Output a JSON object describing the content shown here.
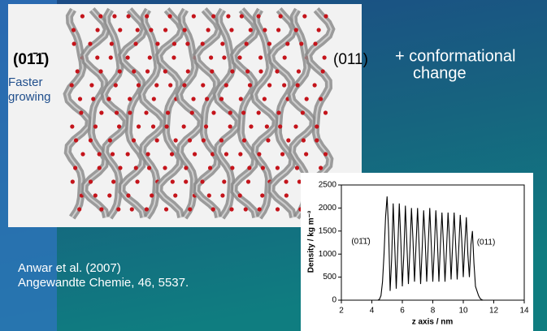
{
  "slide": {
    "label_left": "(01̄1̄)",
    "faster": [
      "Faster",
      "growing"
    ],
    "label_right": "(011)",
    "note": [
      "+ conformational",
      "change"
    ],
    "citation": [
      "Anwar et al. (2007)",
      "Angewandte Chemie, 46, 5537."
    ]
  },
  "chart_data": {
    "type": "line",
    "color": "#000000",
    "x_label": "z axis / nm",
    "y_label": "Density / kg m⁻³",
    "annotations": [
      "(01̄1̄)",
      "(011)"
    ],
    "xlim": [
      2,
      14
    ],
    "xticks": [
      2,
      4,
      6,
      8,
      10,
      12,
      14
    ],
    "ylim": [
      0,
      2500
    ],
    "yticks": [
      0,
      500,
      1000,
      1500,
      2000,
      2500
    ],
    "x": [
      2,
      4.4,
      4.5,
      4.6,
      4.7,
      4.8,
      4.9,
      5.0,
      5.1,
      5.2,
      5.3,
      5.4,
      5.5,
      5.6,
      5.7,
      5.8,
      5.9,
      6.0,
      6.1,
      6.2,
      6.3,
      6.4,
      6.5,
      6.6,
      6.7,
      6.8,
      6.9,
      7.0,
      7.1,
      7.2,
      7.3,
      7.4,
      7.5,
      7.6,
      7.7,
      7.8,
      7.9,
      8.0,
      8.1,
      8.2,
      8.3,
      8.4,
      8.5,
      8.6,
      8.7,
      8.8,
      8.9,
      9.0,
      9.1,
      9.2,
      9.3,
      9.4,
      9.5,
      9.6,
      9.7,
      9.8,
      9.9,
      10.0,
      10.1,
      10.2,
      10.3,
      10.4,
      10.5,
      10.6,
      10.7,
      10.8,
      10.9,
      11.0,
      11.1,
      11.2,
      11.3,
      14
    ],
    "values": [
      0,
      0,
      20,
      100,
      400,
      1000,
      1800,
      2250,
      1500,
      200,
      900,
      2100,
      1200,
      250,
      1100,
      2100,
      1300,
      300,
      1000,
      2050,
      1200,
      350,
      1100,
      2000,
      1300,
      400,
      1200,
      2000,
      1200,
      350,
      1100,
      1950,
      1300,
      400,
      1200,
      2000,
      1200,
      400,
      1100,
      1950,
      1300,
      400,
      1200,
      1900,
      1200,
      400,
      1100,
      1900,
      1300,
      450,
      1200,
      1900,
      1200,
      450,
      1100,
      1850,
      1300,
      500,
      1200,
      1800,
      1000,
      500,
      1200,
      1500,
      800,
      300,
      200,
      100,
      40,
      10,
      0,
      0
    ]
  }
}
